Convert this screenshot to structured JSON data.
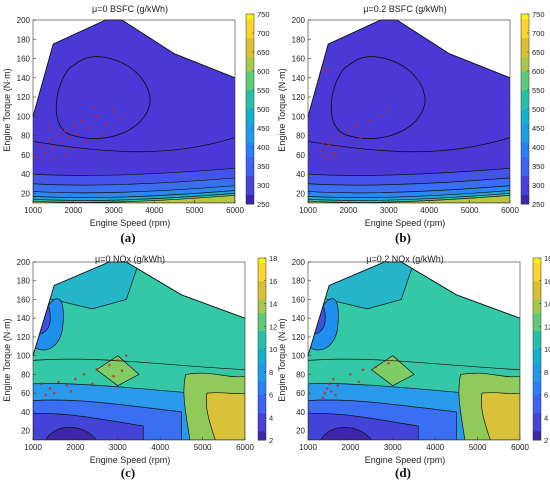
{
  "chart_data": [
    {
      "panel_label": "(a)",
      "type": "contour",
      "title": "μ=0  BSFC (g/kWh)",
      "xlabel": "Engine Speed (rpm)",
      "ylabel": "Engine Torque (N·m)",
      "xlim": [
        1000,
        6000
      ],
      "ylim": [
        10,
        200
      ],
      "x_ticks": [
        1000,
        2000,
        3000,
        4000,
        5000,
        6000
      ],
      "y_ticks": [
        20,
        40,
        60,
        80,
        100,
        120,
        140,
        160,
        180,
        200
      ],
      "colorbar": {
        "min": 250,
        "max": 750,
        "ticks": [
          250,
          300,
          350,
          400,
          450,
          500,
          550,
          600,
          650,
          700,
          750
        ]
      },
      "colormap": "parula",
      "scatter_color": "#cc2222",
      "scatter_points": [
        [
          1200,
          70
        ],
        [
          1300,
          62
        ],
        [
          1400,
          75
        ],
        [
          1500,
          68
        ],
        [
          1600,
          80
        ],
        [
          1700,
          72
        ],
        [
          1800,
          85
        ],
        [
          1900,
          78
        ],
        [
          2000,
          90
        ],
        [
          2100,
          82
        ],
        [
          2200,
          95
        ],
        [
          2400,
          88
        ],
        [
          2600,
          100
        ],
        [
          2800,
          92
        ],
        [
          3000,
          105
        ],
        [
          3200,
          98
        ],
        [
          1500,
          55
        ],
        [
          1800,
          60
        ],
        [
          2300,
          74
        ],
        [
          2700,
          80
        ],
        [
          1100,
          58
        ],
        [
          1400,
          88
        ],
        [
          2000,
          66
        ],
        [
          2500,
          110
        ]
      ]
    },
    {
      "panel_label": "(b)",
      "type": "contour",
      "title": "μ=0.2  BSFC (g/kWh)",
      "xlabel": "Engine Speed (rpm)",
      "ylabel": "Engine Torque (N·m)",
      "xlim": [
        1000,
        6000
      ],
      "ylim": [
        10,
        200
      ],
      "x_ticks": [
        1000,
        2000,
        3000,
        4000,
        5000,
        6000
      ],
      "y_ticks": [
        20,
        40,
        60,
        80,
        100,
        120,
        140,
        160,
        180,
        200
      ],
      "colorbar": {
        "min": 250,
        "max": 750,
        "ticks": [
          250,
          300,
          350,
          400,
          450,
          500,
          550,
          600,
          650,
          700,
          750
        ]
      },
      "colormap": "parula",
      "scatter_color": "#cc2222",
      "scatter_points": [
        [
          1300,
          65
        ],
        [
          1400,
          60
        ],
        [
          1500,
          70
        ],
        [
          1450,
          55
        ],
        [
          1550,
          75
        ],
        [
          1600,
          62
        ],
        [
          1700,
          68
        ],
        [
          1800,
          80
        ],
        [
          2000,
          85
        ],
        [
          2200,
          90
        ],
        [
          2500,
          95
        ],
        [
          2800,
          100
        ],
        [
          3000,
          105
        ],
        [
          1400,
          150
        ],
        [
          1500,
          148
        ],
        [
          1350,
          72
        ],
        [
          1650,
          58
        ],
        [
          2300,
          78
        ]
      ]
    },
    {
      "panel_label": "(c)",
      "type": "contour",
      "title": "μ=0  NOx (g/kWh)",
      "xlabel": "Engine Speed (rpm)",
      "ylabel": "Engine Torque (N·m)",
      "xlim": [
        1000,
        6000
      ],
      "ylim": [
        10,
        200
      ],
      "x_ticks": [
        1000,
        2000,
        3000,
        4000,
        5000,
        6000
      ],
      "y_ticks": [
        20,
        40,
        60,
        80,
        100,
        120,
        140,
        160,
        180,
        200
      ],
      "colorbar": {
        "min": 2,
        "max": 18,
        "ticks": [
          2,
          4,
          6,
          8,
          10,
          12,
          14,
          16,
          18
        ]
      },
      "colormap": "parula",
      "scatter_color": "#cc2222",
      "scatter_points": [
        [
          1200,
          70
        ],
        [
          1400,
          65
        ],
        [
          1600,
          72
        ],
        [
          1800,
          68
        ],
        [
          2000,
          75
        ],
        [
          2200,
          80
        ],
        [
          2500,
          85
        ],
        [
          2800,
          90
        ],
        [
          3000,
          95
        ],
        [
          3200,
          100
        ],
        [
          1500,
          60
        ],
        [
          1900,
          62
        ],
        [
          2400,
          70
        ],
        [
          2900,
          78
        ],
        [
          3100,
          84
        ],
        [
          1300,
          58
        ]
      ]
    },
    {
      "panel_label": "(d)",
      "type": "contour",
      "title": "μ=0.2  NOx (g/kWh)",
      "xlabel": "Engine Speed (rpm)",
      "ylabel": "Engine Torque (N·m)",
      "xlim": [
        1000,
        6000
      ],
      "ylim": [
        10,
        200
      ],
      "x_ticks": [
        1000,
        2000,
        3000,
        4000,
        5000,
        6000
      ],
      "y_ticks": [
        20,
        40,
        60,
        80,
        100,
        120,
        140,
        160,
        180,
        200
      ],
      "colorbar": {
        "min": 2,
        "max": 18,
        "ticks": [
          2,
          4,
          6,
          8,
          10,
          12,
          14,
          16,
          18
        ]
      },
      "colormap": "parula",
      "scatter_color": "#cc2222",
      "scatter_points": [
        [
          1400,
          60
        ],
        [
          1450,
          65
        ],
        [
          1500,
          70
        ],
        [
          1550,
          62
        ],
        [
          1600,
          75
        ],
        [
          1700,
          68
        ],
        [
          2000,
          80
        ],
        [
          2300,
          85
        ],
        [
          2600,
          88
        ],
        [
          2900,
          92
        ],
        [
          3100,
          96
        ],
        [
          1350,
          55
        ],
        [
          1650,
          58
        ],
        [
          2200,
          72
        ]
      ]
    }
  ]
}
